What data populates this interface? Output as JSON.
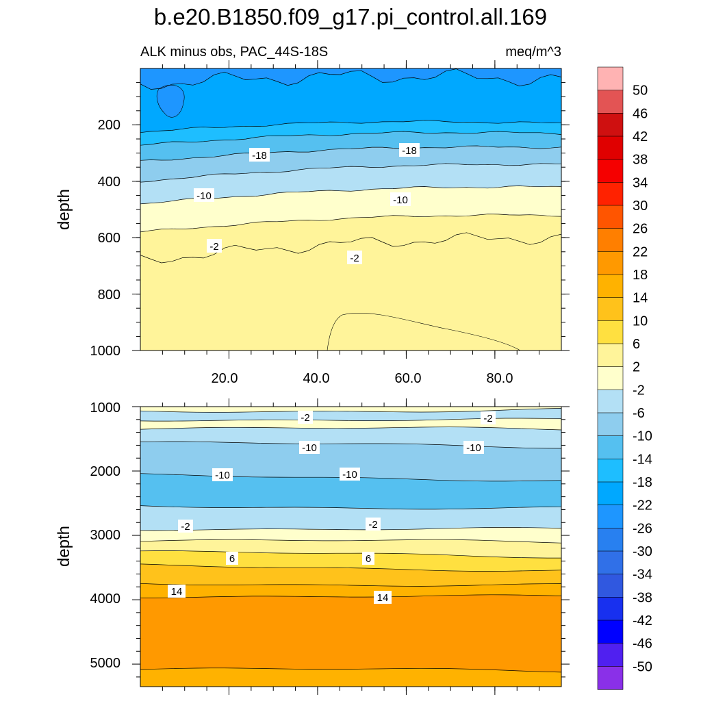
{
  "chart_data": [
    {
      "type": "heatmap",
      "title": "b.e20.B1850.f09_g17.pi_control.all.169",
      "subtitle": "ALK minus obs, PAC_44S-18S",
      "units": "meq/m^3",
      "xlabel": "",
      "ylabel": "depth",
      "xlim": [
        0,
        95
      ],
      "ylim": [
        1000,
        0
      ],
      "xticks": [
        "20.0",
        "40.0",
        "60.0",
        "80.0"
      ],
      "yticks": [
        "200",
        "400",
        "600",
        "800",
        "1000"
      ],
      "contour_levels": [
        -26,
        -22,
        -18,
        -14,
        -10,
        -6,
        -2,
        2,
        6
      ],
      "contour_depths_left": [
        55,
        225,
        272,
        330,
        400,
        480,
        580,
        680
      ],
      "contour_depths_right": [
        40,
        195,
        230,
        280,
        340,
        420,
        520,
        600
      ],
      "contour_labels": [
        "-18",
        "-18",
        "-10",
        "-10",
        "-2",
        "-2"
      ]
    },
    {
      "type": "heatmap",
      "xlabel": "",
      "ylabel": "depth",
      "ylim": [
        5350,
        1000
      ],
      "yticks": [
        "1000",
        "2000",
        "3000",
        "4000",
        "5000"
      ],
      "contour_levels": [
        2,
        -2,
        -6,
        -10,
        -14,
        -10,
        -6,
        -2,
        2,
        6,
        10,
        14,
        18
      ],
      "contour_depths": [
        1050,
        1200,
        1350,
        1600,
        2100,
        2550,
        2900,
        3100,
        3300,
        3500,
        3750,
        3950,
        5100
      ],
      "contour_labels": [
        "-2",
        "-2",
        "-10",
        "-10",
        "-10",
        "-10",
        "-2",
        "-2",
        "6",
        "6",
        "14",
        "14"
      ]
    }
  ],
  "colorbar": {
    "labels": [
      "50",
      "46",
      "42",
      "38",
      "34",
      "30",
      "26",
      "22",
      "18",
      "14",
      "10",
      "6",
      "2",
      "-2",
      "-6",
      "-10",
      "-14",
      "-18",
      "-22",
      "-26",
      "-30",
      "-34",
      "-38",
      "-42",
      "-46",
      "-50"
    ],
    "colors": [
      "#ffb3b3",
      "#e35454",
      "#cf1010",
      "#e00000",
      "#f50000",
      "#ff2200",
      "#ff5500",
      "#ff7f00",
      "#ff9900",
      "#ffb200",
      "#ffc21b",
      "#ffe040",
      "#fff49a",
      "#ffffcc",
      "#b3e0f5",
      "#8ecdee",
      "#55c0f0",
      "#1ebeff",
      "#00a8ff",
      "#1e96ff",
      "#2880f0",
      "#3070e8",
      "#3058e0",
      "#1830ef",
      "#0000ff",
      "#5020f0",
      "#8a30e8"
    ]
  }
}
